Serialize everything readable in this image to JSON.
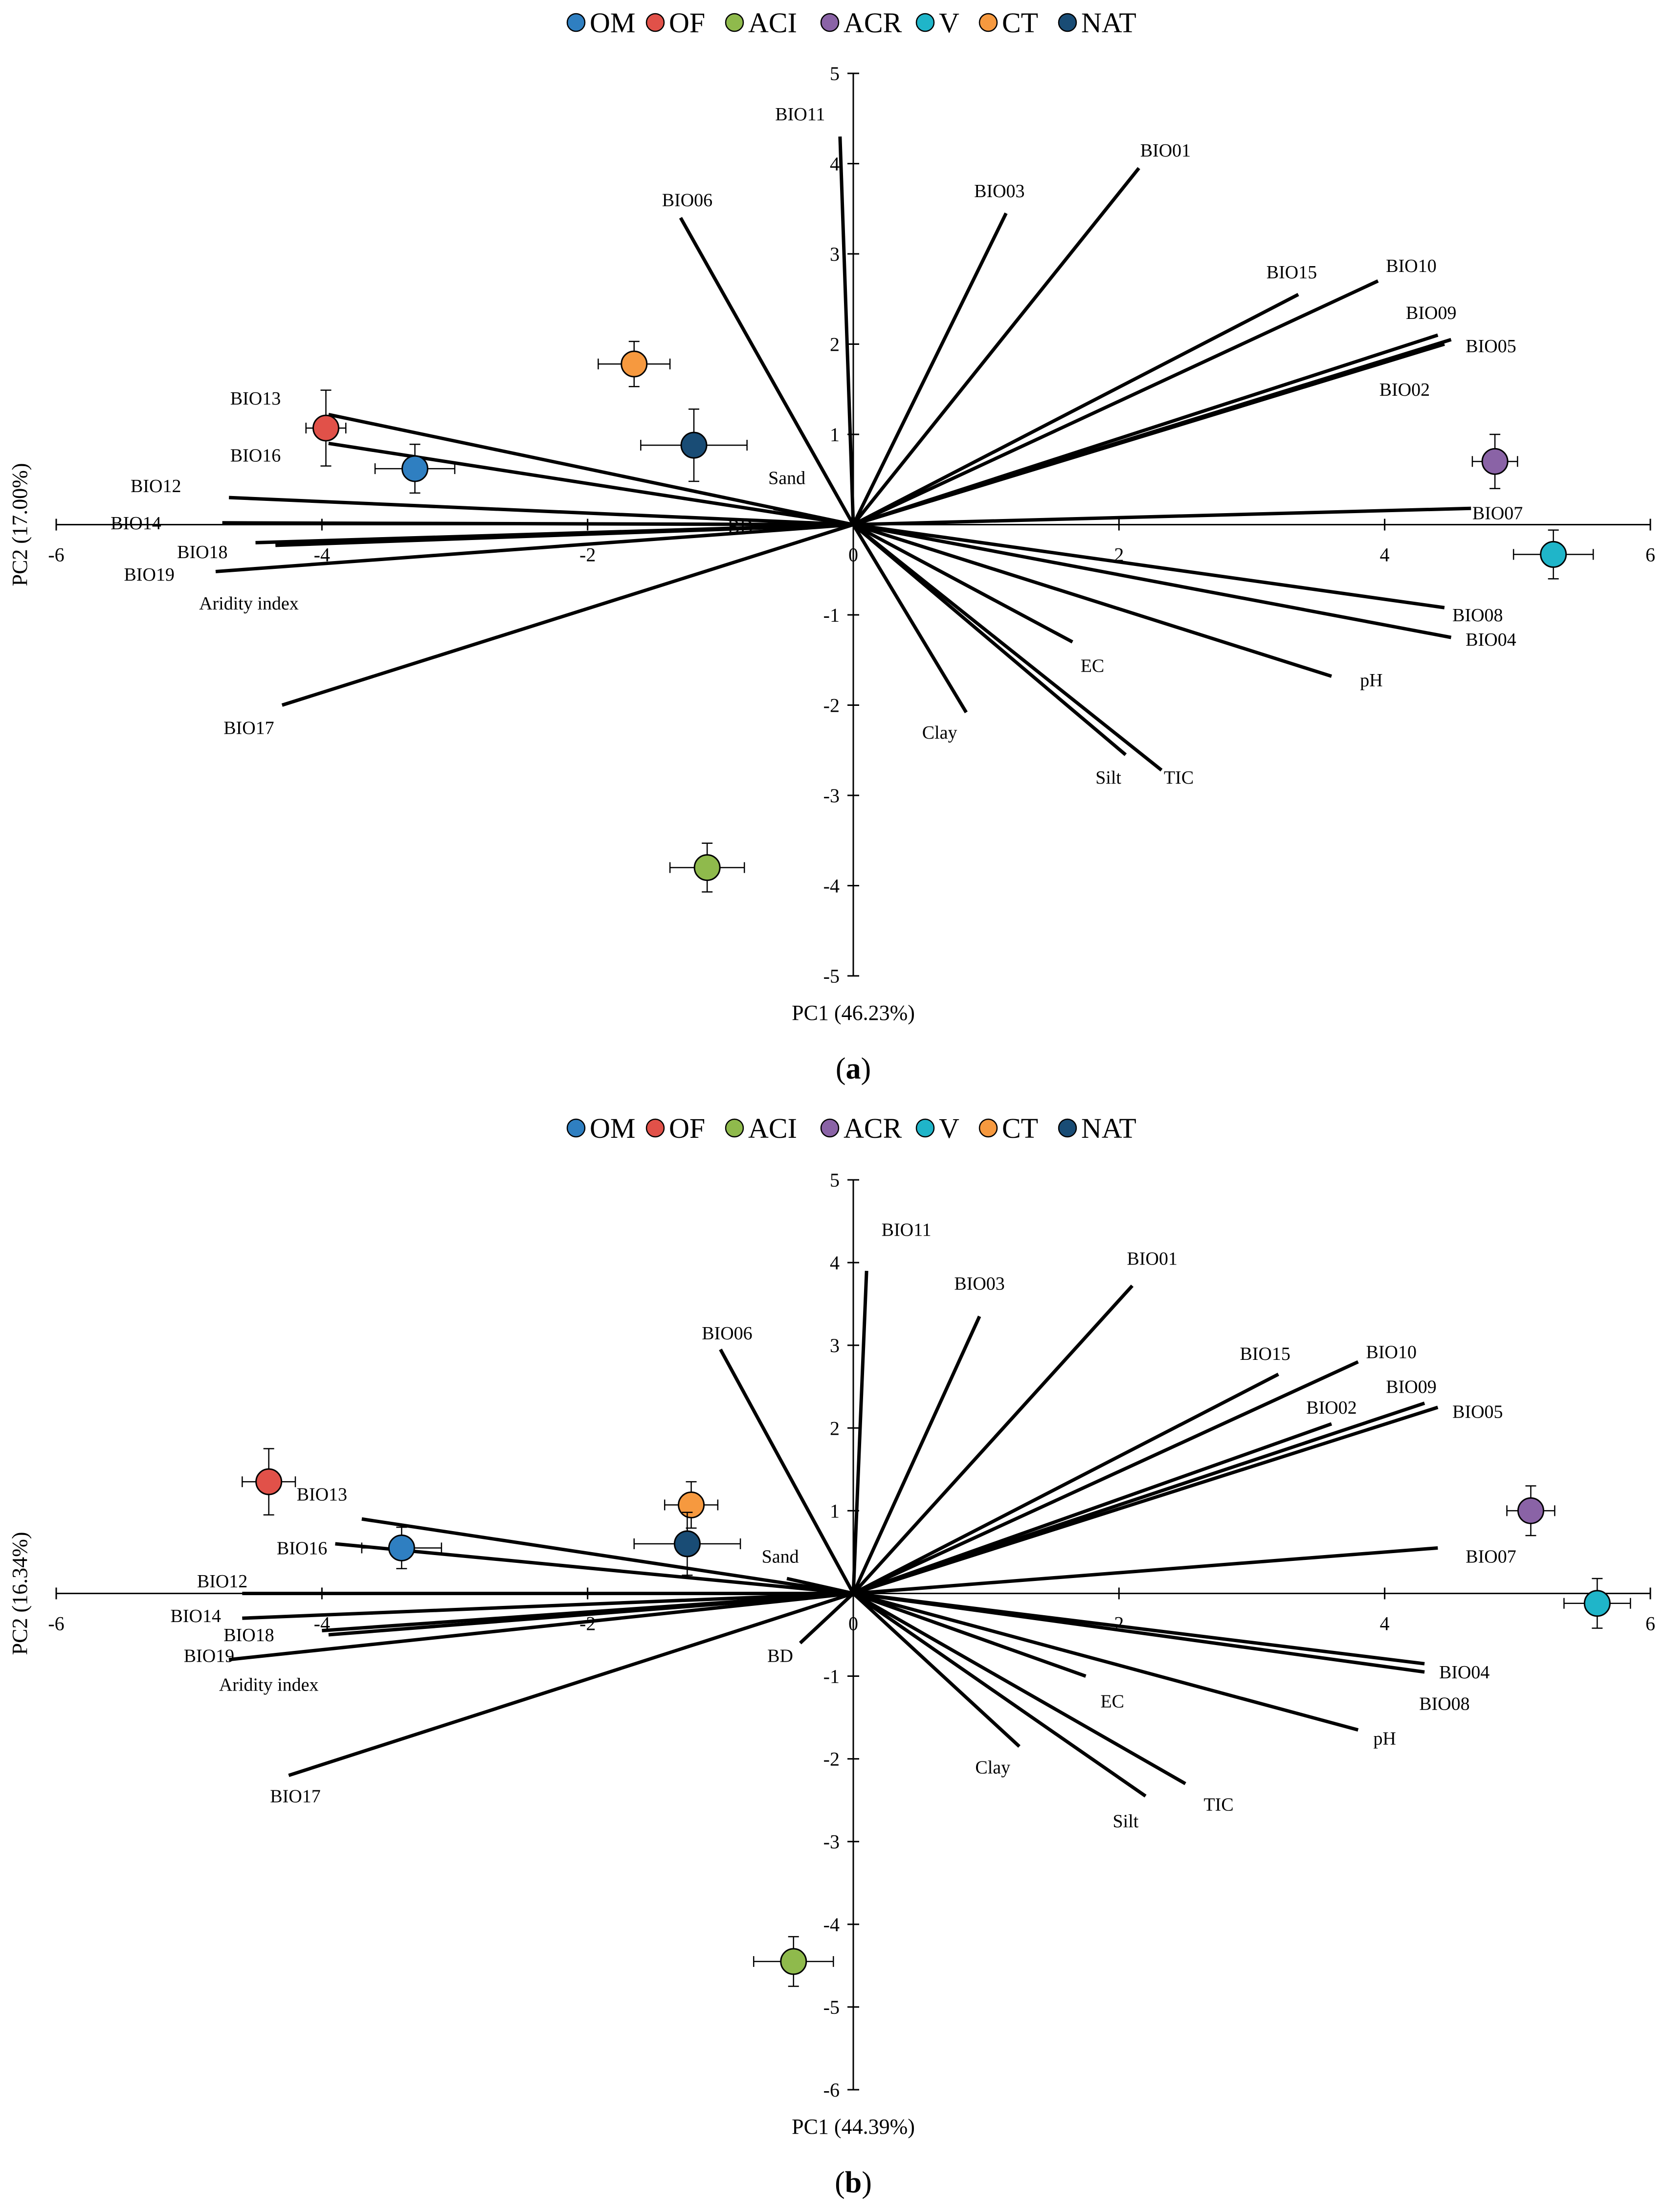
{
  "chart_data": [
    {
      "type": "scatter",
      "panel_label": "a",
      "xlabel": "PC1 (46.23%)",
      "ylabel": "PC2 (17.00%)",
      "xlim": [
        -6,
        6
      ],
      "ylim": [
        -5,
        5
      ],
      "xticks": [
        -6,
        -4,
        -2,
        0,
        2,
        4,
        6
      ],
      "yticks": [
        -5,
        -4,
        -3,
        -2,
        -1,
        1,
        2,
        3,
        4,
        5
      ],
      "legend": {
        "placement": "top"
      },
      "series": [
        {
          "name": "OM",
          "color": "#2f7fc1",
          "x": -3.3,
          "y": 0.62,
          "xerr": 0.3,
          "yerr": 0.27
        },
        {
          "name": "OF",
          "color": "#e15149",
          "x": -3.97,
          "y": 1.07,
          "xerr": 0.15,
          "yerr": 0.42
        },
        {
          "name": "ACI",
          "color": "#8fba4c",
          "x": -1.1,
          "y": -3.8,
          "xerr": 0.28,
          "yerr": 0.27
        },
        {
          "name": "ACR",
          "color": "#8a63a6",
          "x": 4.83,
          "y": 0.7,
          "xerr": 0.17,
          "yerr": 0.3
        },
        {
          "name": "V",
          "color": "#1fb5c9",
          "x": 5.27,
          "y": -0.33,
          "xerr": 0.3,
          "yerr": 0.27
        },
        {
          "name": "CT",
          "color": "#f6993f",
          "x": -1.65,
          "y": 1.78,
          "xerr": 0.27,
          "yerr": 0.25
        },
        {
          "name": "NAT",
          "color": "#194c75",
          "x": -1.2,
          "y": 0.88,
          "xerr": 0.4,
          "yerr": 0.4
        }
      ],
      "vectors": [
        {
          "name": "BIO11",
          "x": -0.1,
          "y": 4.3,
          "lx": -0.4,
          "ly": 4.55
        },
        {
          "name": "BIO06",
          "x": -1.3,
          "y": 3.4,
          "lx": -1.25,
          "ly": 3.6
        },
        {
          "name": "BIO03",
          "x": 1.15,
          "y": 3.45,
          "lx": 1.1,
          "ly": 3.7
        },
        {
          "name": "BIO01",
          "x": 2.15,
          "y": 3.95,
          "lx": 2.35,
          "ly": 4.15
        },
        {
          "name": "BIO15",
          "x": 3.35,
          "y": 2.55,
          "lx": 3.3,
          "ly": 2.8
        },
        {
          "name": "BIO10",
          "x": 3.95,
          "y": 2.7,
          "lx": 4.2,
          "ly": 2.87
        },
        {
          "name": "BIO09",
          "x": 4.4,
          "y": 2.1,
          "lx": 4.35,
          "ly": 2.35
        },
        {
          "name": "BIO05",
          "x": 4.5,
          "y": 2.05,
          "lx": 4.8,
          "ly": 1.98
        },
        {
          "name": "BIO02",
          "x": 4.45,
          "y": 2.0,
          "lx": 4.15,
          "ly": 1.5
        },
        {
          "name": "BIO07",
          "x": 4.65,
          "y": 0.18,
          "lx": 4.85,
          "ly": 0.13
        },
        {
          "name": "BIO08",
          "x": 4.45,
          "y": -0.92,
          "lx": 4.7,
          "ly": -1.0
        },
        {
          "name": "BIO04",
          "x": 4.5,
          "y": -1.25,
          "lx": 4.8,
          "ly": -1.27
        },
        {
          "name": "pH",
          "x": 3.6,
          "y": -1.68,
          "lx": 3.9,
          "ly": -1.72
        },
        {
          "name": "EC",
          "x": 1.65,
          "y": -1.3,
          "lx": 1.8,
          "ly": -1.56
        },
        {
          "name": "Clay",
          "x": 0.85,
          "y": -2.08,
          "lx": 0.65,
          "ly": -2.3
        },
        {
          "name": "Silt",
          "x": 2.05,
          "y": -2.55,
          "lx": 1.92,
          "ly": -2.8
        },
        {
          "name": "TIC",
          "x": 2.32,
          "y": -2.72,
          "lx": 2.45,
          "ly": -2.8
        },
        {
          "name": "Sand",
          "x": -0.6,
          "y": 0.18,
          "lx": -0.5,
          "ly": 0.52
        },
        {
          "name": "BD",
          "x": -0.65,
          "y": 0.0,
          "lx": -0.85,
          "ly": -0.02
        },
        {
          "name": "BIO13",
          "x": -3.95,
          "y": 1.22,
          "lx": -4.5,
          "ly": 1.4
        },
        {
          "name": "BIO16",
          "x": -3.95,
          "y": 0.9,
          "lx": -4.5,
          "ly": 0.77
        },
        {
          "name": "BIO12",
          "x": -4.7,
          "y": 0.3,
          "lx": -5.25,
          "ly": 0.43
        },
        {
          "name": "BIO14",
          "x": -4.75,
          "y": 0.02,
          "lx": -5.4,
          "ly": 0.02
        },
        {
          "name": "BIO18",
          "x": -4.5,
          "y": -0.2,
          "lx": -4.9,
          "ly": -0.3
        },
        {
          "name": "BIO19",
          "x": -4.35,
          "y": -0.23,
          "lx": -5.3,
          "ly": -0.55
        },
        {
          "name": "Aridity index",
          "x": -4.8,
          "y": -0.52,
          "lx": -4.55,
          "ly": -0.87
        },
        {
          "name": "BIO17",
          "x": -4.3,
          "y": -2.0,
          "lx": -4.55,
          "ly": -2.25
        }
      ]
    },
    {
      "type": "scatter",
      "panel_label": "b",
      "xlabel": "PC1 (44.39%)",
      "ylabel": "PC2 (16.34%)",
      "xlim": [
        -6,
        6
      ],
      "ylim": [
        -6,
        5
      ],
      "xticks": [
        -6,
        -4,
        -2,
        0,
        2,
        4,
        6
      ],
      "yticks": [
        -6,
        -5,
        -4,
        -3,
        -2,
        -1,
        1,
        2,
        3,
        4,
        5
      ],
      "legend": {
        "placement": "top"
      },
      "series": [
        {
          "name": "OM",
          "color": "#2f7fc1",
          "x": -3.4,
          "y": 0.55,
          "xerr": 0.3,
          "yerr": 0.25
        },
        {
          "name": "OF",
          "color": "#e15149",
          "x": -4.4,
          "y": 1.35,
          "xerr": 0.2,
          "yerr": 0.4
        },
        {
          "name": "ACI",
          "color": "#8fba4c",
          "x": -0.45,
          "y": -4.45,
          "xerr": 0.3,
          "yerr": 0.3
        },
        {
          "name": "ACR",
          "color": "#8a63a6",
          "x": 5.1,
          "y": 1.0,
          "xerr": 0.18,
          "yerr": 0.3
        },
        {
          "name": "V",
          "color": "#1fb5c9",
          "x": 5.6,
          "y": -0.12,
          "xerr": 0.25,
          "yerr": 0.3
        },
        {
          "name": "CT",
          "color": "#f6993f",
          "x": -1.22,
          "y": 1.07,
          "xerr": 0.2,
          "yerr": 0.28
        },
        {
          "name": "NAT",
          "color": "#194c75",
          "x": -1.25,
          "y": 0.6,
          "xerr": 0.4,
          "yerr": 0.38
        }
      ],
      "vectors": [
        {
          "name": "BIO11",
          "x": 0.1,
          "y": 3.9,
          "lx": 0.4,
          "ly": 4.4
        },
        {
          "name": "BIO06",
          "x": -1.0,
          "y": 2.95,
          "lx": -0.95,
          "ly": 3.15
        },
        {
          "name": "BIO03",
          "x": 0.95,
          "y": 3.35,
          "lx": 0.95,
          "ly": 3.75
        },
        {
          "name": "BIO01",
          "x": 2.1,
          "y": 3.72,
          "lx": 2.25,
          "ly": 4.05
        },
        {
          "name": "BIO15",
          "x": 3.2,
          "y": 2.65,
          "lx": 3.1,
          "ly": 2.9
        },
        {
          "name": "BIO10",
          "x": 3.8,
          "y": 2.8,
          "lx": 4.05,
          "ly": 2.92
        },
        {
          "name": "BIO09",
          "x": 4.3,
          "y": 2.3,
          "lx": 4.2,
          "ly": 2.5
        },
        {
          "name": "BIO02",
          "x": 3.6,
          "y": 2.05,
          "lx": 3.6,
          "ly": 2.25
        },
        {
          "name": "BIO05",
          "x": 4.4,
          "y": 2.25,
          "lx": 4.7,
          "ly": 2.2
        },
        {
          "name": "BIO07",
          "x": 4.4,
          "y": 0.55,
          "lx": 4.8,
          "ly": 0.45
        },
        {
          "name": "BIO04",
          "x": 4.3,
          "y": -0.85,
          "lx": 4.6,
          "ly": -0.95
        },
        {
          "name": "BIO08",
          "x": 4.3,
          "y": -0.95,
          "lx": 4.45,
          "ly": -1.33
        },
        {
          "name": "pH",
          "x": 3.8,
          "y": -1.65,
          "lx": 4.0,
          "ly": -1.75
        },
        {
          "name": "EC",
          "x": 1.75,
          "y": -1.0,
          "lx": 1.95,
          "ly": -1.3
        },
        {
          "name": "Clay",
          "x": 1.25,
          "y": -1.85,
          "lx": 1.05,
          "ly": -2.1
        },
        {
          "name": "Silt",
          "x": 2.2,
          "y": -2.45,
          "lx": 2.05,
          "ly": -2.75
        },
        {
          "name": "TIC",
          "x": 2.5,
          "y": -2.3,
          "lx": 2.75,
          "ly": -2.55
        },
        {
          "name": "Sand",
          "x": -0.5,
          "y": 0.18,
          "lx": -0.55,
          "ly": 0.45
        },
        {
          "name": "BD",
          "x": -0.4,
          "y": -0.6,
          "lx": -0.55,
          "ly": -0.75
        },
        {
          "name": "BIO13",
          "x": -3.7,
          "y": 0.9,
          "lx": -4.0,
          "ly": 1.2
        },
        {
          "name": "BIO16",
          "x": -3.9,
          "y": 0.6,
          "lx": -4.15,
          "ly": 0.55
        },
        {
          "name": "BIO12",
          "x": -4.6,
          "y": 0.0,
          "lx": -4.75,
          "ly": 0.15
        },
        {
          "name": "BIO14",
          "x": -4.6,
          "y": -0.3,
          "lx": -4.95,
          "ly": -0.27
        },
        {
          "name": "BIO18",
          "x": -4.0,
          "y": -0.45,
          "lx": -4.55,
          "ly": -0.5
        },
        {
          "name": "BIO19",
          "x": -3.95,
          "y": -0.5,
          "lx": -4.85,
          "ly": -0.75
        },
        {
          "name": "Aridity index",
          "x": -4.7,
          "y": -0.8,
          "lx": -4.4,
          "ly": -1.1
        },
        {
          "name": "BIO17",
          "x": -4.25,
          "y": -2.2,
          "lx": -4.2,
          "ly": -2.45
        }
      ]
    }
  ]
}
